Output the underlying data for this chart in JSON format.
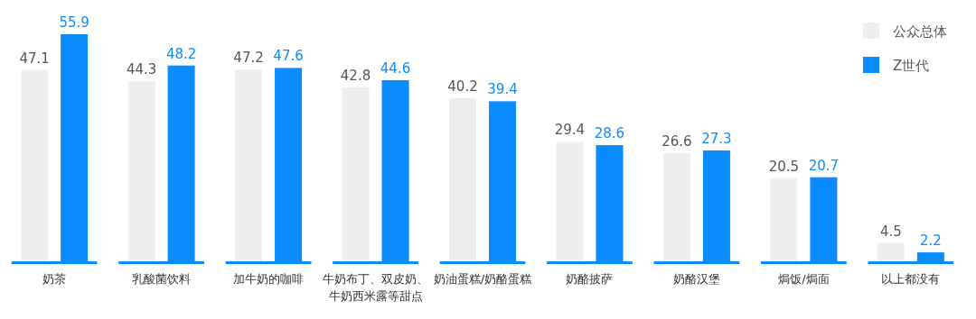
{
  "chart_data": {
    "type": "bar",
    "categories": [
      "奶茶",
      "乳酸菌饮料",
      "加牛奶的咖啡",
      "牛奶布丁、双皮奶、牛奶西米露等甜点",
      "奶油蛋糕/奶酪蛋糕",
      "奶酪披萨",
      "奶酪汉堡",
      "焗饭/焗面",
      "以上都没有"
    ],
    "series": [
      {
        "name": "公众总体",
        "color": "#eeefee",
        "values": [
          47.1,
          44.3,
          47.2,
          42.8,
          40.2,
          29.4,
          26.6,
          20.5,
          4.5
        ]
      },
      {
        "name": "Z世代",
        "color": "#0a8cff",
        "values": [
          55.9,
          48.2,
          47.6,
          44.6,
          39.4,
          28.6,
          27.3,
          20.7,
          2.2
        ]
      }
    ],
    "data_labels": true,
    "legend": "top right"
  }
}
